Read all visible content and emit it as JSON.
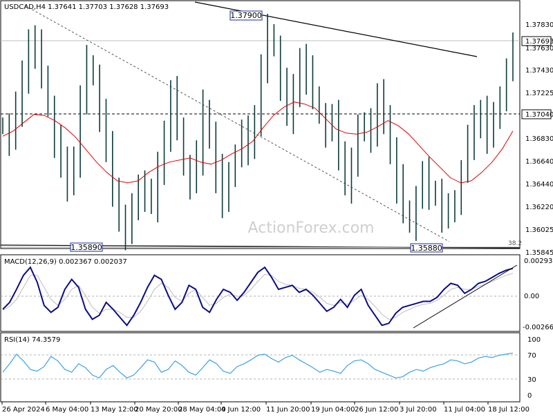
{
  "chart_data": [
    {
      "type": "ohlc",
      "title": "USDCAD,H4  1.37641 1.37703 1.37628 1.37693",
      "x_tick_labels": [
        "26 Apr 2024",
        "6 May 04:00",
        "13 May 12:00",
        "20 May 20:00",
        "28 May 04:00",
        "4 Jun 12:00",
        "11 Jun 20:00",
        "19 Jun 04:00",
        "26 Jun 12:00",
        "3 Jul 20:00",
        "11 Jul 04:00",
        "18 Jul 12:00"
      ],
      "y_tick_labels": [
        "1.37830",
        "1.37430",
        "1.37225",
        "1.36830",
        "1.36640",
        "1.36440",
        "1.36220",
        "1.36025",
        "1.35845"
      ],
      "ylim": [
        1.3578,
        1.3803
      ],
      "price_labels": {
        "current": "1.37693",
        "high_level": "1.37040",
        "right_top": "1.37830",
        "right_partial": "1.37630"
      },
      "annotations": {
        "swing_high": "1.37900",
        "low_left": "1.35890",
        "low_right": "1.35880",
        "fib": "38.2"
      },
      "watermark": "ActionForex.com",
      "series": [
        {
          "name": "price",
          "values": [
            1.3695,
            1.3682,
            1.3712,
            1.3738,
            1.3778,
            1.377,
            1.3745,
            1.3712,
            1.368,
            1.3655,
            1.364,
            1.3665,
            1.372,
            1.3755,
            1.3742,
            1.3705,
            1.367,
            1.3635,
            1.3605,
            1.3595,
            1.3612,
            1.364,
            1.3628,
            1.362,
            1.365,
            1.369,
            1.3725,
            1.3695,
            1.3655,
            1.364,
            1.3665,
            1.371,
            1.3685,
            1.365,
            1.362,
            1.3652,
            1.3665,
            1.3685,
            1.3675,
            1.3705,
            1.375,
            1.3785,
            1.377,
            1.3735,
            1.3705,
            1.3725,
            1.376,
            1.3745,
            1.3725,
            1.3705,
            1.369,
            1.37,
            1.367,
            1.364,
            1.366,
            1.3688,
            1.37,
            1.3685,
            1.372,
            1.3705,
            1.367,
            1.364,
            1.3615,
            1.36,
            1.3625,
            1.3645,
            1.3632,
            1.363,
            1.3612,
            1.361,
            1.3625,
            1.365,
            1.368,
            1.3695,
            1.371,
            1.3688,
            1.37,
            1.3725,
            1.3748,
            1.3769
          ]
        },
        {
          "name": "MA",
          "values": [
            1.3685,
            1.369,
            1.3698,
            1.3706,
            1.3705,
            1.37,
            1.3693,
            1.3684,
            1.3672,
            1.366,
            1.365,
            1.3642,
            1.364,
            1.3642,
            1.365,
            1.3656,
            1.366,
            1.3662,
            1.3664,
            1.366,
            1.3658,
            1.3662,
            1.3668,
            1.3673,
            1.368,
            1.3693,
            1.3705,
            1.3713,
            1.3718,
            1.3716,
            1.3712,
            1.3702,
            1.3692,
            1.3688,
            1.3687,
            1.3689,
            1.3694,
            1.37,
            1.3695,
            1.3687,
            1.3676,
            1.3665,
            1.3655,
            1.3645,
            1.364,
            1.3642,
            1.365,
            1.366,
            1.3673,
            1.369
          ]
        }
      ]
    },
    {
      "type": "line",
      "title": "MACD(12,26,9) 0.002367 0.002037",
      "y_tick_labels": [
        "0.002937",
        "0.00",
        "-0.002669"
      ],
      "ylim": [
        -0.0032,
        0.0035
      ],
      "series": [
        {
          "name": "MACD",
          "values": [
            -0.0012,
            -0.0005,
            0.0008,
            0.0022,
            0.003,
            0.0015,
            -0.0008,
            -0.0015,
            -0.001,
            0.0008,
            0.0018,
            0.001,
            -0.0012,
            -0.0022,
            -0.0018,
            -0.0005,
            -0.0012,
            -0.002,
            -0.0028,
            -0.0018,
            -0.0005,
            0.001,
            0.0022,
            0.0018,
            0.0002,
            -0.0012,
            -0.0005,
            0.0012,
            0.0008,
            -0.001,
            -0.0015,
            -0.0002,
            0.0008,
            0.0005,
            -0.0003,
            0.0005,
            0.0015,
            0.0025,
            0.003,
            0.002,
            0.0008,
            0.001,
            0.0012,
            0.0005,
            0.0008,
            0.0002,
            -0.0006,
            -0.0014,
            -0.001,
            -0.0002,
            -0.001,
            0.0002,
            0.0008,
            -0.0008,
            -0.0018,
            -0.0028,
            -0.0026,
            -0.0016,
            -0.001,
            -0.0008,
            -0.0006,
            -0.0004,
            -0.0004,
            0.0,
            0.0008,
            0.0014,
            0.0012,
            0.0004,
            0.0008,
            0.0014,
            0.0016,
            0.002,
            0.0024,
            0.0027,
            0.0029
          ]
        },
        {
          "name": "Signal",
          "values": [
            -0.0013,
            -0.0009,
            -0.0002,
            0.001,
            0.0022,
            0.0022,
            0.001,
            -0.0002,
            -0.0008,
            -0.0002,
            0.0008,
            0.0012,
            0.0002,
            -0.001,
            -0.0016,
            -0.0012,
            -0.0012,
            -0.0015,
            -0.002,
            -0.002,
            -0.0014,
            -0.0004,
            0.0008,
            0.0014,
            0.001,
            0.0,
            -0.0004,
            0.0004,
            0.0008,
            0.0,
            -0.0008,
            -0.0006,
            0.0,
            0.0003,
            0.0001,
            0.0002,
            0.0008,
            0.0016,
            0.0023,
            0.0022,
            0.0016,
            0.0013,
            0.0012,
            0.0009,
            0.0008,
            0.0005,
            0.0,
            -0.0006,
            -0.0008,
            -0.0005,
            -0.0007,
            -0.0003,
            0.0002,
            -0.0002,
            -0.0009,
            -0.0017,
            -0.0022,
            -0.002,
            -0.0015,
            -0.0012,
            -0.0009,
            -0.0007,
            -0.0006,
            -0.0003,
            0.0002,
            0.0008,
            0.001,
            0.0008,
            0.0008,
            0.0011,
            0.0013,
            0.0016,
            0.0019,
            0.0022,
            0.0024
          ]
        }
      ]
    },
    {
      "type": "line",
      "title": "RSI(14) 74.3579",
      "y_tick_labels": [
        "100",
        "70",
        "30",
        "0"
      ],
      "ylim": [
        0,
        100
      ],
      "series": [
        {
          "name": "RSI",
          "values": [
            40,
            55,
            72,
            60,
            45,
            42,
            50,
            68,
            60,
            45,
            40,
            55,
            48,
            35,
            30,
            45,
            52,
            40,
            30,
            35,
            48,
            62,
            58,
            40,
            45,
            60,
            52,
            40,
            35,
            48,
            62,
            55,
            42,
            38,
            50,
            55,
            62,
            70,
            72,
            64,
            58,
            66,
            70,
            62,
            55,
            48,
            40,
            45,
            42,
            38,
            52,
            60,
            62,
            55,
            45,
            40,
            35,
            30,
            32,
            40,
            45,
            42,
            48,
            52,
            55,
            62,
            60,
            55,
            58,
            65,
            68,
            66,
            70,
            72,
            74
          ]
        }
      ]
    }
  ]
}
